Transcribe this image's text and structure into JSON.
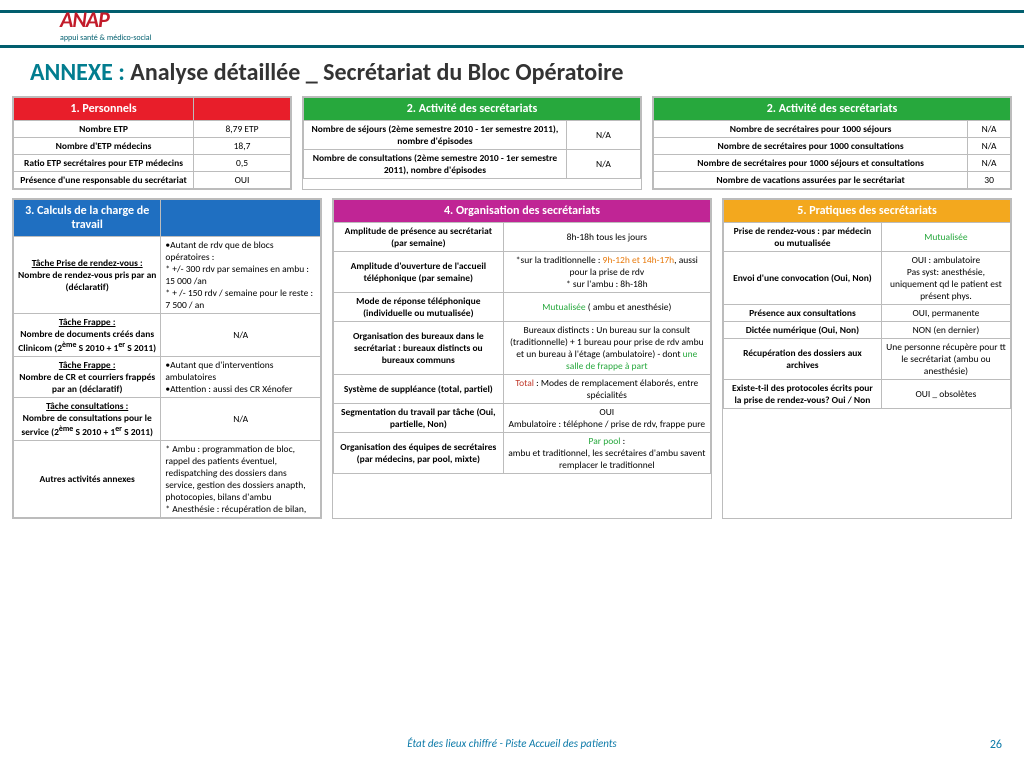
{
  "logo": {
    "brand": "ANAP",
    "tagline": "appui santé & médico-social"
  },
  "title": {
    "accent": "ANNEXE :",
    "rest": " Analyse détaillée _ Secrétariat du Bloc Opératoire"
  },
  "footer": "État des lieux chiffré - Piste Accueil des patients",
  "page_number": "26",
  "t1": {
    "header": "1. Personnels",
    "rows": [
      [
        "Nombre ETP",
        "8,79 ETP"
      ],
      [
        "Nombre d'ETP médecins",
        "18,7"
      ],
      [
        "Ratio ETP secrétaires pour ETP médecins",
        "0,5"
      ],
      [
        "Présence d'une responsable du secrétariat",
        "OUI"
      ]
    ]
  },
  "t2a": {
    "header": "2. Activité des secrétariats",
    "rows": [
      [
        "Nombre de séjours\n(2ème semestre 2010 - 1er semestre 2011), nombre d'épisodes",
        "N/A"
      ],
      [
        "Nombre de consultations (2ème semestre 2010 - 1er semestre 2011), nombre d'épisodes",
        "N/A"
      ]
    ]
  },
  "t2b": {
    "header": "2. Activité des secrétariats",
    "rows": [
      [
        "Nombre de secrétaires pour 1000 séjours",
        "N/A"
      ],
      [
        "Nombre de secrétaires pour 1000 consultations",
        "N/A"
      ],
      [
        "Nombre de secrétaires pour 1000 séjours et consultations",
        "N/A"
      ],
      [
        "Nombre de vacations assurées par le secrétariat",
        "30"
      ]
    ]
  },
  "t3": {
    "header": "3. Calculs de la charge de travail",
    "rows": [
      {
        "label": "<u>Tâche Prise de rendez-vous :</u><br>Nombre de rendez-vous pris par an (déclaratif)",
        "val": "•Autant de rdv que de blocs opératoires :<br>* +/- 300 rdv par semaines en ambu : 15 000 /an<br>* + /- 150  rdv / semaine pour le reste : 7 500 / an"
      },
      {
        "label": "<u>Tâche Frappe :</u><br>Nombre de documents créés dans Clinicom (2<sup>ème</sup> S 2010 + 1<sup>er</sup> S 2011)",
        "val": "N/A"
      },
      {
        "label": "<u>Tâche Frappe :</u><br>Nombre de CR et courriers frappés par an (déclaratif)",
        "val": "•Autant que d'interventions ambulatoires<br>•Attention : aussi des CR Xénofer"
      },
      {
        "label": "<u>Tâche consultations :</u><br>Nombre de consultations pour le service (2<sup>ème</sup> S 2010 + 1<sup>er</sup> S 2011)",
        "val": "N/A"
      },
      {
        "label": "Autres activités annexes",
        "val": "* Ambu : programmation de bloc, rappel des patients éventuel,  redispatching des dossiers dans service, gestion des dossiers anapth, photocopies, bilans d'ambu<br>* Anesthésie : récupération de bilan,"
      }
    ]
  },
  "t4": {
    "header": "4. Organisation des secrétariats",
    "rows": [
      {
        "label": "Amplitude de présence au secrétariat  (par semaine)",
        "val": "8h-18h tous les jours"
      },
      {
        "label": "Amplitude d'ouverture de l'accueil téléphonique (par semaine)",
        "val": "*sur la traditionnelle : <span class='hl-orange'>9h-12h et 14h-17h</span>, aussi pour la prise de rdv<br>* sur l'ambu : 8h-18h"
      },
      {
        "label": "Mode de réponse téléphonique (individuelle ou mutualisée)",
        "val": "<span class='hl-green'>Mutualisée</span> ( ambu et anesthésie)"
      },
      {
        "label": "Organisation des bureaux dans le secrétariat : bureaux distincts ou bureaux communs",
        "val": "Bureaux distincts : Un bureau sur la consult (traditionnelle) + 1 bureau pour prise de rdv ambu et un bureau à l'étage (ambulatoire) - dont <span class='hl-green'>une salle de frappe à part</span>"
      },
      {
        "label": "Système de suppléance (total, partiel)",
        "val": "<span class='hl-red'>Total</span> : Modes de remplacement élaborés, entre spécialités"
      },
      {
        "label": "Segmentation du travail par tâche (Oui, partielle, Non)",
        "val": "OUI<br>Ambulatoire : téléphone / prise de rdv, frappe pure"
      },
      {
        "label": "Organisation des équipes de secrétaires (par médecins, par pool, mixte)",
        "val": "<span class='hl-green'>Par pool</span> :<br>ambu et traditionnel, les secrétaires d'ambu savent remplacer le traditionnel"
      }
    ]
  },
  "t5": {
    "header": "5. Pratiques des secrétariats",
    "rows": [
      {
        "label": "Prise de rendez-vous : par médecin ou mutualisée",
        "val": "<span class='hl-green'>Mutualisée</span>"
      },
      {
        "label": "Envoi d'une convocation (Oui, Non)",
        "val": "OUI : ambulatoire<br>Pas syst: anesthésie, uniquement qd le patient est présent phys."
      },
      {
        "label": "Présence aux consultations",
        "val": "OUI, permanente"
      },
      {
        "label": "Dictée numérique (Oui, Non)",
        "val": "NON (en dernier)"
      },
      {
        "label": "Récupération des dossiers aux archives",
        "val": "Une personne récupère pour tt le secrétariat (ambu ou anesthésie)"
      },
      {
        "label": "Existe-t-il des protocoles écrits pour la prise de rendez-vous? Oui / Non",
        "val": "OUI _ obsolètes"
      }
    ]
  }
}
